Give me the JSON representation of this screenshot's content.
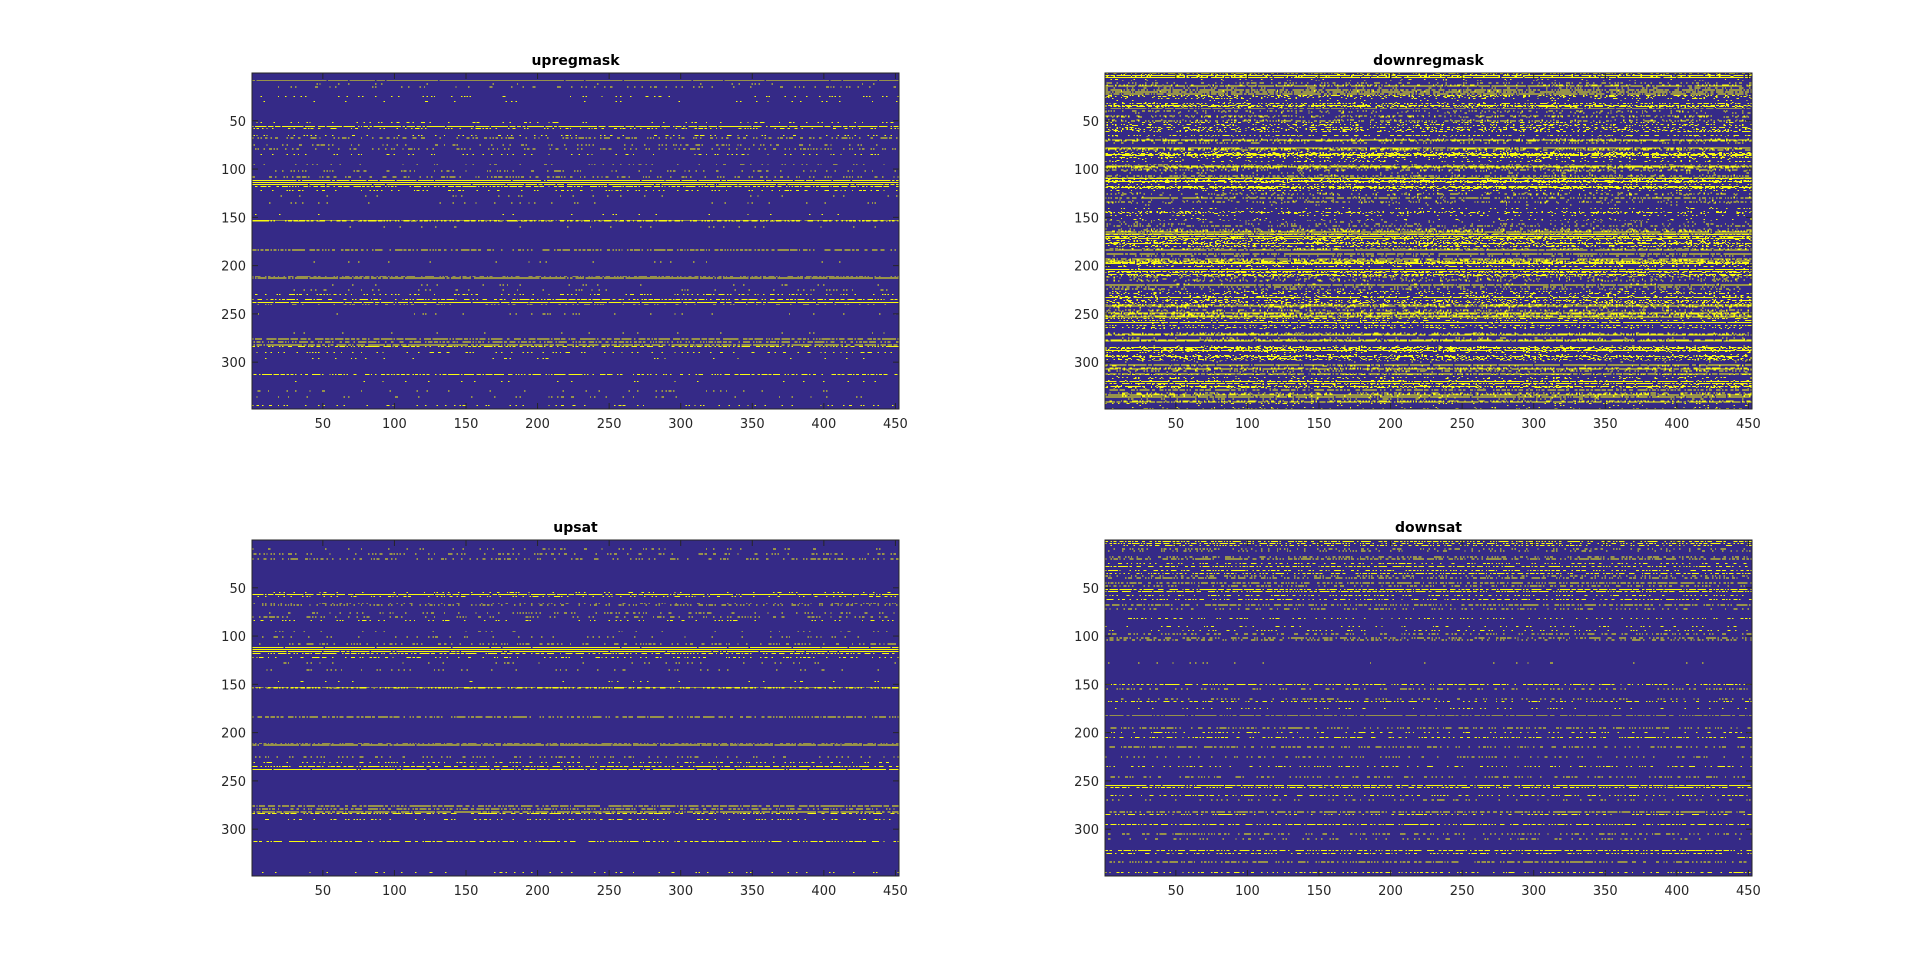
{
  "colors": {
    "background_figure": "#ffffff",
    "zero_value": "#352a87",
    "one_value": "#f9fb0e",
    "axis": "#262626"
  },
  "chart_data": [
    {
      "type": "heatmap",
      "title": "upregmask",
      "values": "binary mask (0/1); dense yellow rows near 114, 118, 153, 184, 212, 238, 276-284",
      "xlim": [
        0.5,
        452.5
      ],
      "ylim": [
        0.5,
        348.5
      ],
      "y_reversed": true,
      "xticks": [
        50,
        100,
        150,
        200,
        250,
        300,
        350,
        400,
        450
      ],
      "yticks": [
        50,
        100,
        150,
        200,
        250,
        300
      ],
      "grid": false,
      "legend": "none"
    },
    {
      "type": "heatmap",
      "title": "downregmask",
      "values": "binary mask (0/1); many dense yellow rows across full range",
      "xlim": [
        0.5,
        452.5
      ],
      "ylim": [
        0.5,
        348.5
      ],
      "y_reversed": true,
      "xticks": [
        50,
        100,
        150,
        200,
        250,
        300,
        350,
        400,
        450
      ],
      "yticks": [
        50,
        100,
        150,
        200,
        250,
        300
      ],
      "grid": false,
      "legend": "none"
    },
    {
      "type": "heatmap",
      "title": "upsat",
      "values": "binary mask (0/1); dense yellow rows near 114, 118, 153, 184, 212, 238, 276-284",
      "xlim": [
        0.5,
        452.5
      ],
      "ylim": [
        0.5,
        348.5
      ],
      "y_reversed": true,
      "xticks": [
        50,
        100,
        150,
        200,
        250,
        300,
        350,
        400,
        450
      ],
      "yticks": [
        50,
        100,
        150,
        200,
        250,
        300
      ],
      "grid": false,
      "legend": "none"
    },
    {
      "type": "heatmap",
      "title": "downsat",
      "values": "binary mask (0/1); dense yellow rows at top (5-100) and sparse rows 150-330",
      "xlim": [
        0.5,
        452.5
      ],
      "ylim": [
        0.5,
        348.5
      ],
      "y_reversed": true,
      "xticks": [
        50,
        100,
        150,
        200,
        250,
        300,
        350,
        400,
        450
      ],
      "yticks": [
        50,
        100,
        150,
        200,
        250,
        300
      ],
      "grid": false,
      "legend": "none"
    }
  ]
}
